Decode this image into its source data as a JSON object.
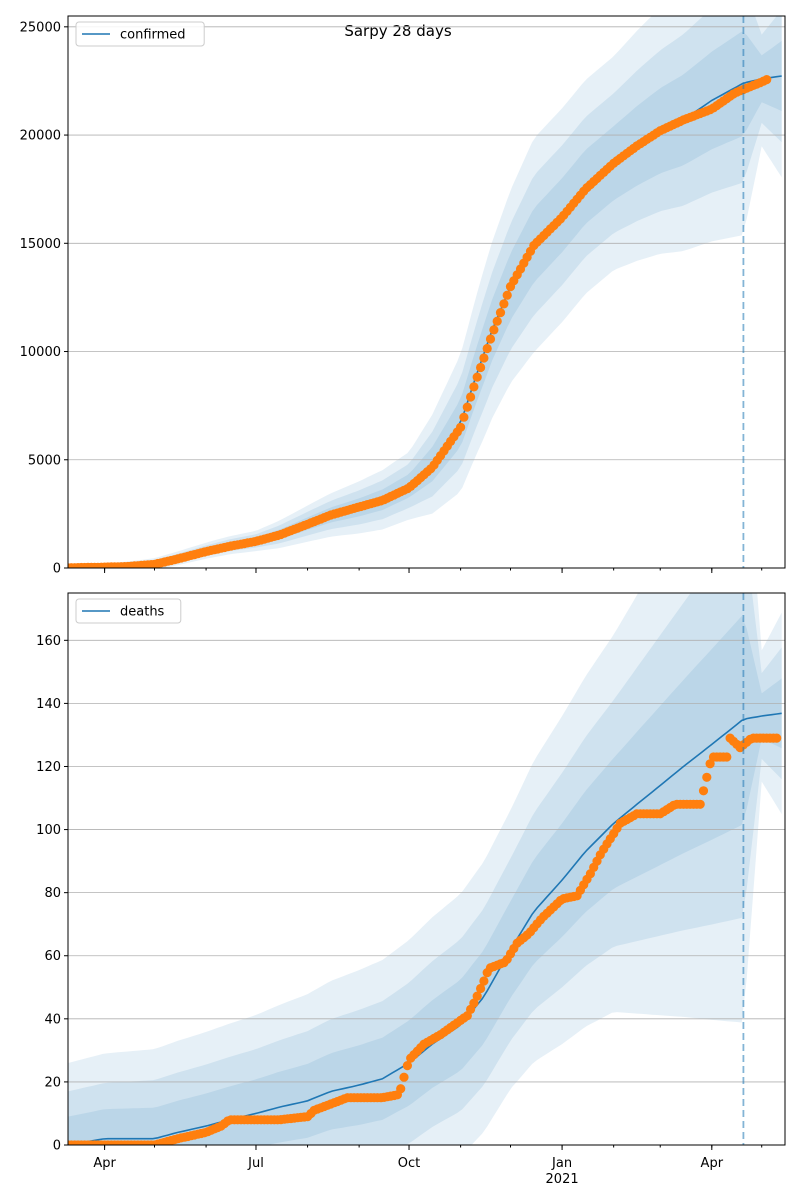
{
  "suptitle": "Sarpy 28 days",
  "colors": {
    "line": "#1f77b4",
    "band": "#1f77b4",
    "dots": "#ff7f0e",
    "grid": "#b0b0b0",
    "forecast_line": "#1f77b4"
  },
  "x_axis": {
    "type": "date",
    "range": [
      "2020-03-10",
      "2021-05-15"
    ],
    "tick_labels": [
      {
        "date": "2020-04-01",
        "label": "Apr"
      },
      {
        "date": "2020-07-01",
        "label": "Jul"
      },
      {
        "date": "2020-10-01",
        "label": "Oct"
      },
      {
        "date": "2021-01-01",
        "label": "Jan",
        "sublabel": "2021"
      },
      {
        "date": "2021-04-01",
        "label": "Apr"
      }
    ],
    "forecast_start": "2021-04-20"
  },
  "chart_data": [
    {
      "type": "line",
      "legend": "confirmed",
      "legend_position": "top-left",
      "grid": "horizontal",
      "ylim": [
        0,
        25500
      ],
      "yticks": [
        0,
        5000,
        10000,
        15000,
        20000,
        25000
      ],
      "model": [
        [
          "2020-03-10",
          10
        ],
        [
          "2020-04-01",
          30
        ],
        [
          "2020-04-15",
          80
        ],
        [
          "2020-05-01",
          180
        ],
        [
          "2020-05-15",
          450
        ],
        [
          "2020-06-01",
          800
        ],
        [
          "2020-06-15",
          1050
        ],
        [
          "2020-07-01",
          1250
        ],
        [
          "2020-07-15",
          1550
        ],
        [
          "2020-08-01",
          2050
        ],
        [
          "2020-08-15",
          2450
        ],
        [
          "2020-09-01",
          2800
        ],
        [
          "2020-09-15",
          3150
        ],
        [
          "2020-10-01",
          3800
        ],
        [
          "2020-10-15",
          4800
        ],
        [
          "2020-11-01",
          6700
        ],
        [
          "2020-11-10",
          8800
        ],
        [
          "2020-11-20",
          11000
        ],
        [
          "2020-12-01",
          13000
        ],
        [
          "2020-12-15",
          14900
        ],
        [
          "2021-01-01",
          16300
        ],
        [
          "2021-01-15",
          17600
        ],
        [
          "2021-02-01",
          18700
        ],
        [
          "2021-02-15",
          19500
        ],
        [
          "2021-03-01",
          20200
        ],
        [
          "2021-03-15",
          20700
        ],
        [
          "2021-04-01",
          21600
        ],
        [
          "2021-04-20",
          22400
        ],
        [
          "2021-05-01",
          22600
        ],
        [
          "2021-05-15",
          22750
        ]
      ],
      "band_scale": [
        [
          "2020-03-10",
          40
        ],
        [
          "2020-07-01",
          180
        ],
        [
          "2020-10-01",
          600
        ],
        [
          "2020-11-15",
          1500
        ],
        [
          "2020-12-15",
          1900
        ],
        [
          "2021-02-01",
          1900
        ],
        [
          "2021-04-20",
          2700
        ],
        [
          "2021-05-01",
          1200
        ],
        [
          "2021-05-15",
          1900
        ]
      ],
      "observed": [
        [
          "2020-03-10",
          10
        ],
        [
          "2020-04-01",
          40
        ],
        [
          "2020-04-15",
          70
        ],
        [
          "2020-05-01",
          170
        ],
        [
          "2020-05-15",
          420
        ],
        [
          "2020-06-01",
          760
        ],
        [
          "2020-06-15",
          1000
        ],
        [
          "2020-07-01",
          1230
        ],
        [
          "2020-07-15",
          1520
        ],
        [
          "2020-08-01",
          2020
        ],
        [
          "2020-08-15",
          2450
        ],
        [
          "2020-09-01",
          2820
        ],
        [
          "2020-09-15",
          3120
        ],
        [
          "2020-10-01",
          3700
        ],
        [
          "2020-10-15",
          4650
        ],
        [
          "2020-11-01",
          6500
        ],
        [
          "2020-11-10",
          8600
        ],
        [
          "2020-11-20",
          10800
        ],
        [
          "2020-12-01",
          13000
        ],
        [
          "2020-12-15",
          14900
        ],
        [
          "2021-01-01",
          16200
        ],
        [
          "2021-01-15",
          17500
        ],
        [
          "2021-02-01",
          18700
        ],
        [
          "2021-02-15",
          19500
        ],
        [
          "2021-03-01",
          20200
        ],
        [
          "2021-03-15",
          20700
        ],
        [
          "2021-04-01",
          21200
        ],
        [
          "2021-04-15",
          21950
        ],
        [
          "2021-05-01",
          22450
        ],
        [
          "2021-05-05",
          22600
        ]
      ]
    },
    {
      "type": "line",
      "legend": "deaths",
      "legend_position": "top-left",
      "grid": "horizontal",
      "ylim": [
        0,
        175
      ],
      "yticks": [
        0,
        20,
        40,
        60,
        80,
        100,
        120,
        140,
        160
      ],
      "model": [
        [
          "2020-03-10",
          0
        ],
        [
          "2020-04-01",
          2
        ],
        [
          "2020-04-15",
          2
        ],
        [
          "2020-05-01",
          2
        ],
        [
          "2020-05-15",
          4
        ],
        [
          "2020-06-01",
          6
        ],
        [
          "2020-06-15",
          8
        ],
        [
          "2020-07-01",
          10
        ],
        [
          "2020-07-15",
          12
        ],
        [
          "2020-08-01",
          14
        ],
        [
          "2020-08-15",
          17
        ],
        [
          "2020-09-01",
          19
        ],
        [
          "2020-09-15",
          21
        ],
        [
          "2020-10-01",
          26
        ],
        [
          "2020-10-15",
          32
        ],
        [
          "2020-11-01",
          38
        ],
        [
          "2020-11-15",
          47
        ],
        [
          "2020-12-01",
          62
        ],
        [
          "2020-12-15",
          74
        ],
        [
          "2021-01-01",
          84
        ],
        [
          "2021-01-15",
          93
        ],
        [
          "2021-02-01",
          102
        ],
        [
          "2021-02-15",
          108
        ],
        [
          "2021-03-01",
          114
        ],
        [
          "2021-03-15",
          120
        ],
        [
          "2021-04-01",
          127
        ],
        [
          "2021-04-20",
          135
        ],
        [
          "2021-05-01",
          136
        ],
        [
          "2021-05-15",
          137
        ]
      ],
      "band_scale": [
        [
          "2020-03-10",
          10
        ],
        [
          "2020-07-01",
          12
        ],
        [
          "2020-10-01",
          15
        ],
        [
          "2020-12-01",
          17
        ],
        [
          "2021-02-01",
          23
        ],
        [
          "2021-04-20",
          37
        ],
        [
          "2021-05-01",
          8
        ],
        [
          "2021-05-15",
          13
        ]
      ],
      "observed": [
        [
          "2020-03-10",
          0
        ],
        [
          "2020-04-01",
          0
        ],
        [
          "2020-05-01",
          0
        ],
        [
          "2020-05-15",
          2
        ],
        [
          "2020-06-01",
          4
        ],
        [
          "2020-06-10",
          6
        ],
        [
          "2020-06-15",
          8
        ],
        [
          "2020-07-01",
          8
        ],
        [
          "2020-07-15",
          8
        ],
        [
          "2020-08-01",
          9
        ],
        [
          "2020-08-05",
          11
        ],
        [
          "2020-08-15",
          13
        ],
        [
          "2020-08-25",
          15
        ],
        [
          "2020-09-15",
          15
        ],
        [
          "2020-09-25",
          16
        ],
        [
          "2020-10-01",
          27
        ],
        [
          "2020-10-10",
          32
        ],
        [
          "2020-10-20",
          35
        ],
        [
          "2020-10-28",
          38
        ],
        [
          "2020-11-05",
          41
        ],
        [
          "2020-11-10",
          46
        ],
        [
          "2020-11-15",
          52
        ],
        [
          "2020-11-18",
          56
        ],
        [
          "2020-11-28",
          58
        ],
        [
          "2020-12-05",
          64
        ],
        [
          "2020-12-12",
          67
        ],
        [
          "2020-12-20",
          72
        ],
        [
          "2021-01-01",
          78
        ],
        [
          "2021-01-10",
          79
        ],
        [
          "2021-01-18",
          86
        ],
        [
          "2021-01-25",
          93
        ],
        [
          "2021-02-05",
          102
        ],
        [
          "2021-02-15",
          105
        ],
        [
          "2021-03-01",
          105
        ],
        [
          "2021-03-10",
          108
        ],
        [
          "2021-03-25",
          108
        ],
        [
          "2021-04-01",
          123
        ],
        [
          "2021-04-10",
          123
        ],
        [
          "2021-04-12",
          129
        ],
        [
          "2021-04-18",
          126
        ],
        [
          "2021-04-25",
          129
        ],
        [
          "2021-05-10",
          129
        ]
      ]
    }
  ]
}
